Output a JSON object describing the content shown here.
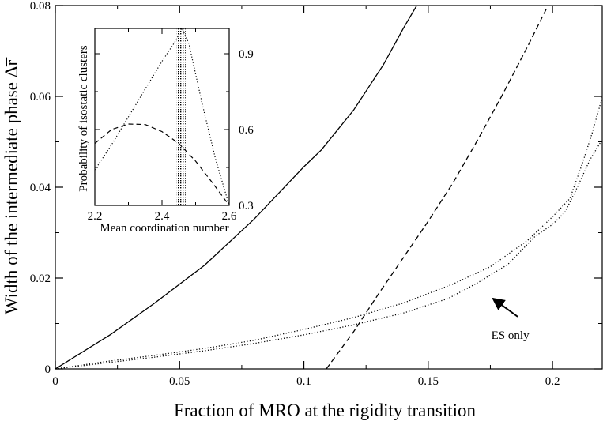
{
  "chart_data": [
    {
      "type": "line",
      "title": "",
      "xlabel": "Fraction of MRO at the rigidity transition",
      "ylabel": "Width of the intermediate phase Δr̅",
      "xlim": [
        0,
        0.22
      ],
      "ylim": [
        0,
        0.08
      ],
      "x_ticks": [
        0,
        0.05,
        0.1,
        0.15,
        0.2
      ],
      "x_tick_labels": [
        "0",
        "0.05",
        "0.1",
        "0.15",
        "0.2"
      ],
      "y_ticks": [
        0,
        0.02,
        0.04,
        0.06,
        0.08
      ],
      "y_tick_labels": [
        "0",
        "0.02",
        "0.04",
        "0.06",
        "0.08"
      ],
      "series": [
        {
          "name": "solid",
          "style": "solid",
          "x": [
            0,
            0.022,
            0.04,
            0.06,
            0.08,
            0.1,
            0.107,
            0.12,
            0.132,
            0.14,
            0.147
          ],
          "y": [
            0,
            0.0075,
            0.0145,
            0.0228,
            0.033,
            0.0445,
            0.0482,
            0.057,
            0.067,
            0.075,
            0.0815
          ]
        },
        {
          "name": "dashed",
          "style": "dashed",
          "x": [
            0.109,
            0.12,
            0.13,
            0.14,
            0.15,
            0.16,
            0.17,
            0.18,
            0.19,
            0.2
          ],
          "y": [
            0,
            0.0082,
            0.0165,
            0.0245,
            0.0325,
            0.041,
            0.0505,
            0.0605,
            0.071,
            0.082
          ]
        },
        {
          "name": "ES only (upper)",
          "style": "dotted",
          "x": [
            0,
            0.02,
            0.04,
            0.06,
            0.08,
            0.1,
            0.12,
            0.14,
            0.16,
            0.175,
            0.19,
            0.2,
            0.207,
            0.212,
            0.216,
            0.22
          ],
          "y": [
            0,
            0.0016,
            0.003,
            0.0045,
            0.0063,
            0.0087,
            0.0113,
            0.0145,
            0.0187,
            0.0225,
            0.0283,
            0.0335,
            0.0375,
            0.0452,
            0.052,
            0.0598
          ]
        },
        {
          "name": "ES only (lower)",
          "style": "dotted",
          "x": [
            0,
            0.02,
            0.04,
            0.06,
            0.08,
            0.1,
            0.12,
            0.14,
            0.158,
            0.17,
            0.182,
            0.193,
            0.2,
            0.205,
            0.21,
            0.215,
            0.22
          ],
          "y": [
            0,
            0.0013,
            0.0026,
            0.004,
            0.0056,
            0.0075,
            0.0097,
            0.0123,
            0.0155,
            0.019,
            0.023,
            0.0292,
            0.0318,
            0.0345,
            0.04,
            0.046,
            0.0505
          ]
        }
      ],
      "annotations": [
        {
          "text": "ES only",
          "x": 0.183,
          "y": 0.0075,
          "arrow_to": [
            0.176,
            0.0155
          ],
          "arrow_from": [
            0.186,
            0.0115
          ]
        }
      ]
    },
    {
      "type": "line",
      "title": "",
      "xlabel": "Mean coordination number",
      "ylabel": "Probability of isostatic clusters",
      "xlim": [
        2.2,
        2.6
      ],
      "ylim": [
        0.3,
        1.0
      ],
      "x_ticks": [
        2.2,
        2.4,
        2.6
      ],
      "x_tick_labels": [
        "2.2",
        "2.4",
        "2.6"
      ],
      "y_ticks": [
        0.3,
        0.6,
        0.9
      ],
      "y_tick_labels": [
        "0.3",
        "0.6",
        "0.9"
      ],
      "y_axis_side": "right",
      "shaded_band": {
        "x": [
          2.443,
          2.47
        ]
      },
      "series": [
        {
          "name": "dotted",
          "style": "dotted",
          "x": [
            2.2,
            2.25,
            2.3,
            2.35,
            2.4,
            2.44,
            2.46,
            2.48,
            2.52,
            2.56,
            2.6
          ],
          "y": [
            0.44,
            0.54,
            0.65,
            0.76,
            0.87,
            0.95,
            1.0,
            0.94,
            0.7,
            0.48,
            0.3
          ]
        },
        {
          "name": "dashed",
          "style": "dashed",
          "x": [
            2.2,
            2.25,
            2.3,
            2.35,
            2.4,
            2.45,
            2.5,
            2.55,
            2.6
          ],
          "y": [
            0.545,
            0.6,
            0.622,
            0.62,
            0.592,
            0.545,
            0.475,
            0.39,
            0.3
          ]
        }
      ]
    }
  ]
}
